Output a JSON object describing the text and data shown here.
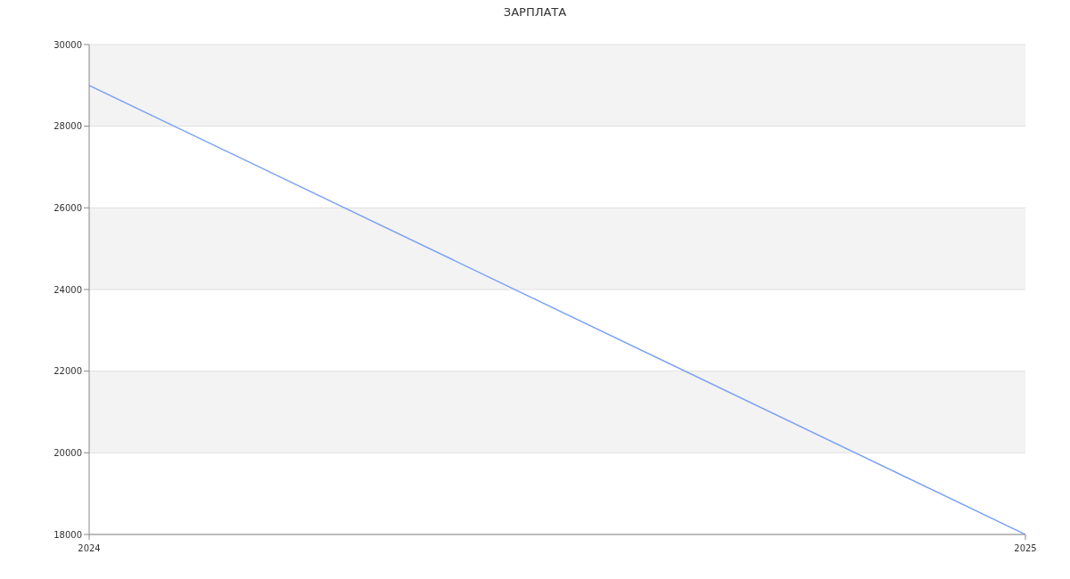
{
  "chart_data": {
    "type": "line",
    "title": "ЗАРПЛАТА",
    "x": [
      "2024",
      "2025"
    ],
    "series": [
      {
        "color": "#7aa1f5",
        "values": [
          29000,
          18000
        ]
      }
    ],
    "xlim": [
      "2024",
      "2025"
    ],
    "xticks": [
      {
        "value": "2024",
        "label": "2024"
      },
      {
        "value": "2025",
        "label": "2025"
      }
    ],
    "ylim": [
      18000,
      30000
    ],
    "yticks": [
      18000,
      20000,
      22000,
      24000,
      26000,
      28000,
      30000
    ],
    "grid": "y",
    "marker": "none",
    "line_style": "solid"
  }
}
